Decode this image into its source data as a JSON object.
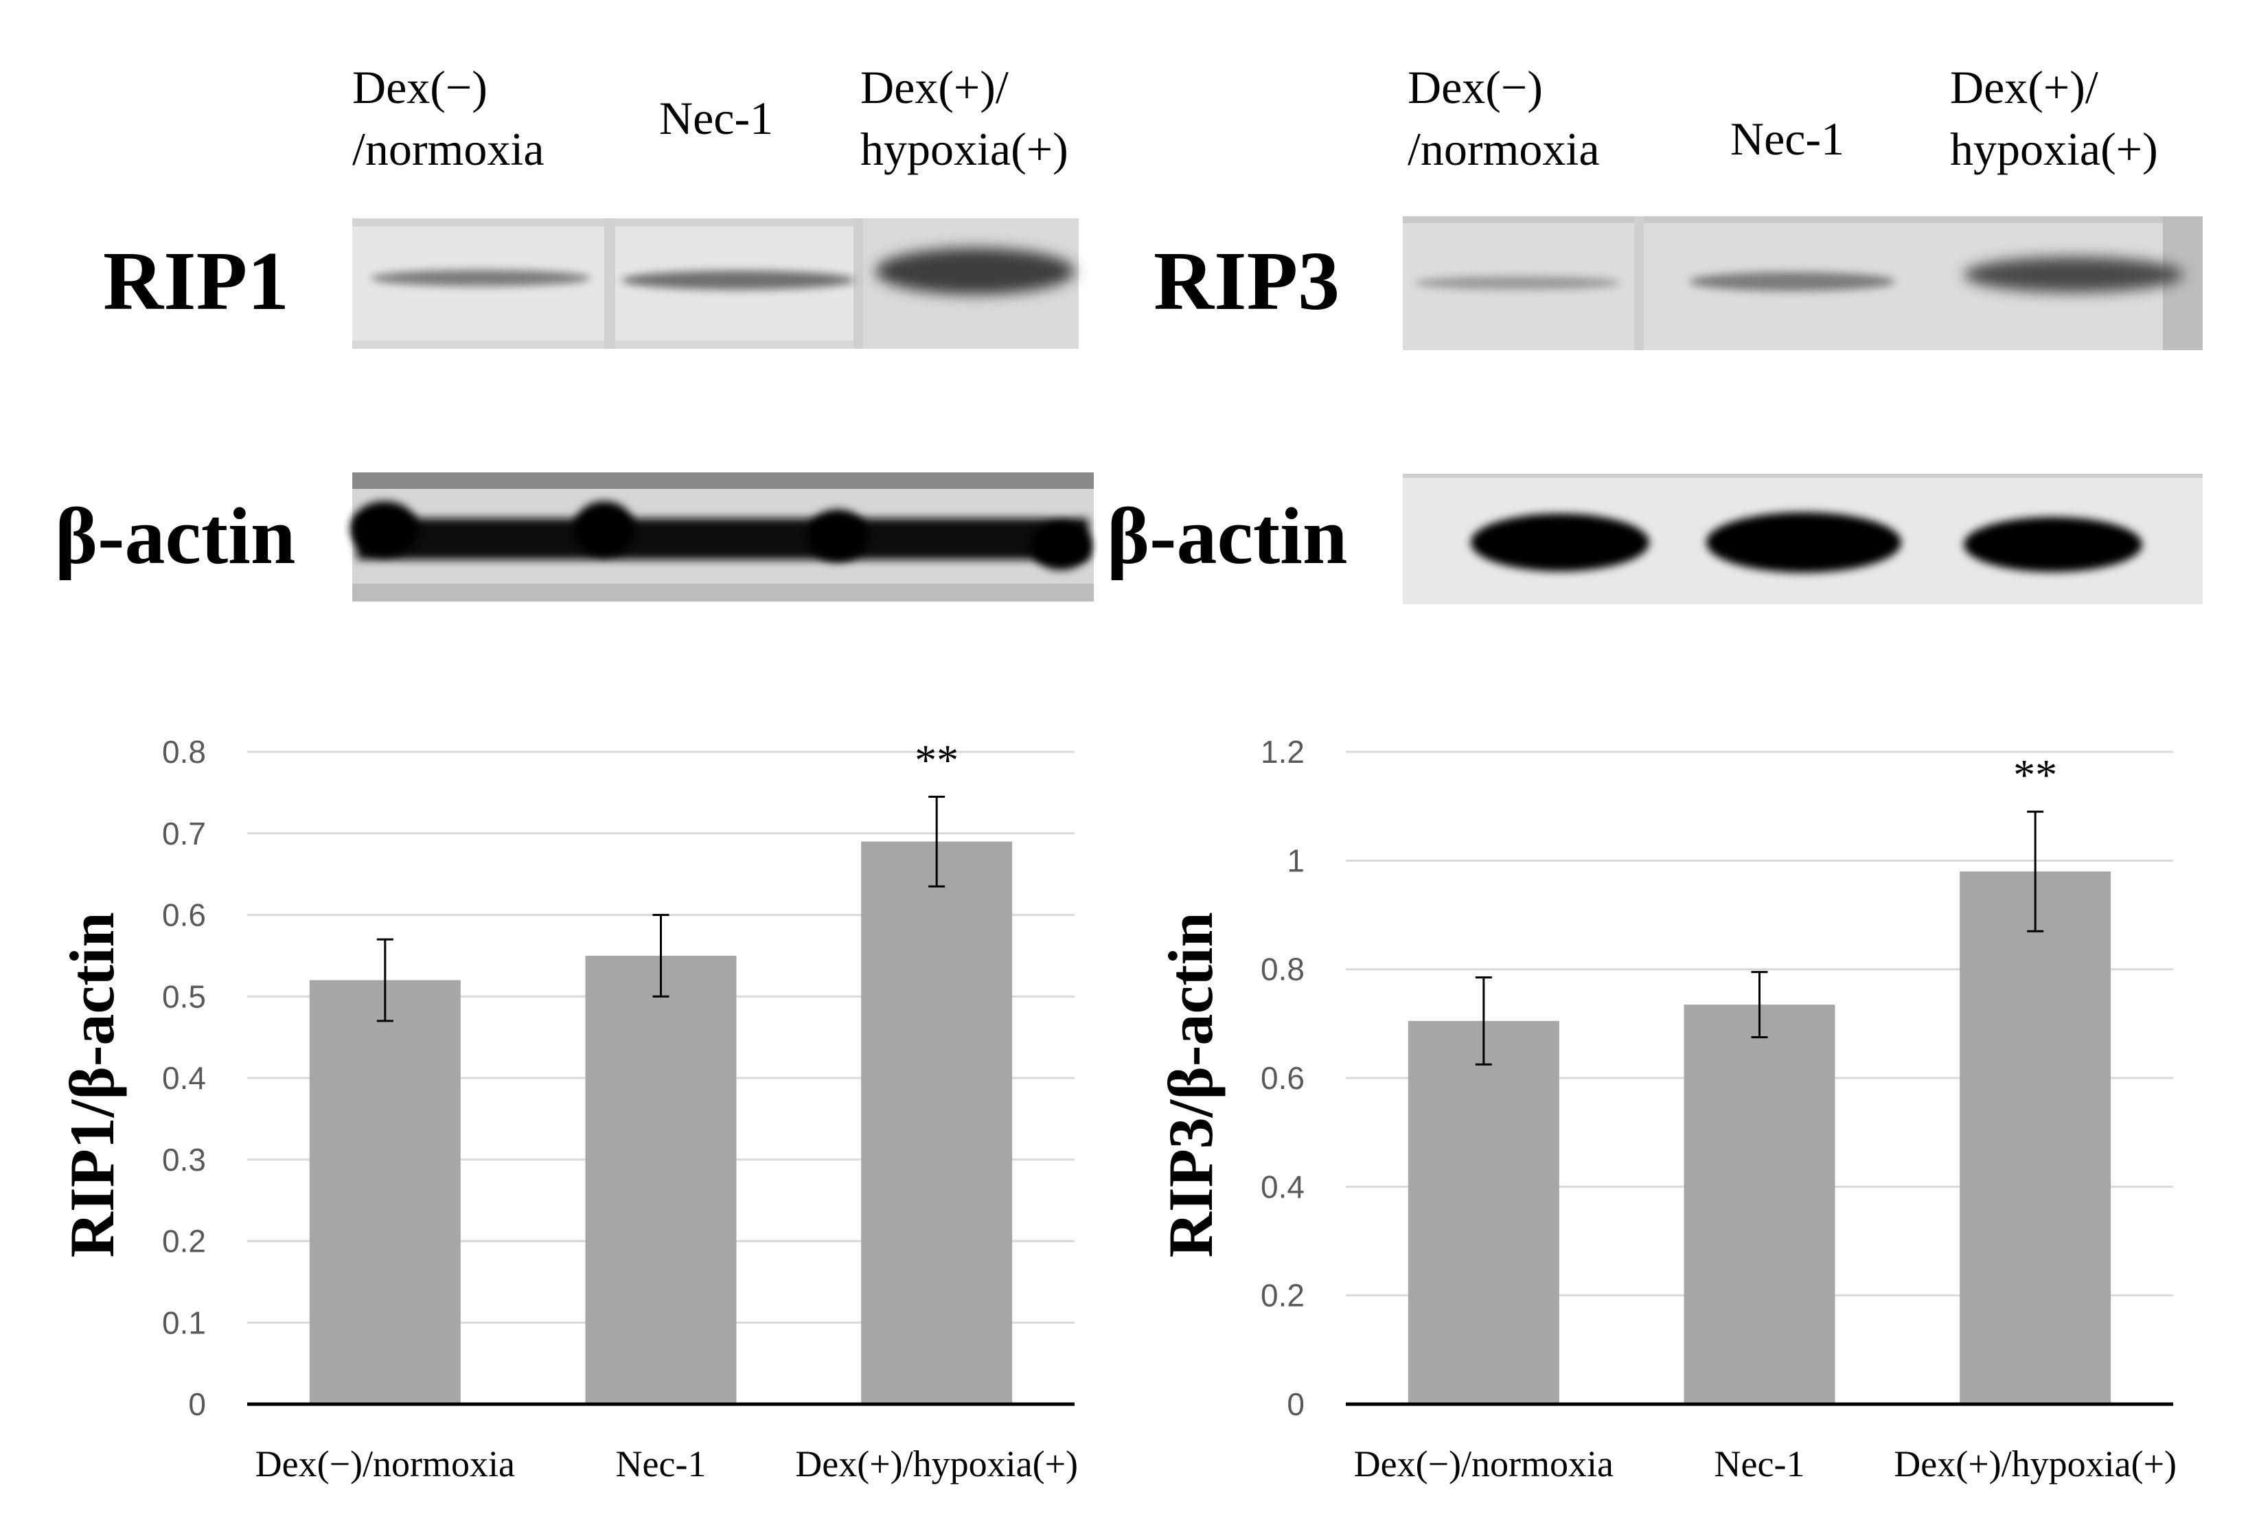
{
  "blots": [
    {
      "protein_label": "RIP1",
      "loading_label": "β-actin",
      "lanes": [
        [
          "Dex(−)",
          "/normoxia"
        ],
        [
          "Nec-1"
        ],
        [
          "Dex(+)/",
          "hypoxia(+)"
        ]
      ]
    },
    {
      "protein_label": "RIP3",
      "loading_label": "β-actin",
      "lanes": [
        [
          "Dex(−)",
          "/normoxia"
        ],
        [
          "Nec-1"
        ],
        [
          "Dex(+)/",
          "hypoxia(+)"
        ]
      ]
    }
  ],
  "chart_data": [
    {
      "type": "bar",
      "categories": [
        "Dex(−)/normoxia",
        "Nec-1",
        "Dex(+)/hypoxia(+)"
      ],
      "values": [
        0.52,
        0.55,
        0.69
      ],
      "errors": [
        0.05,
        0.05,
        0.055
      ],
      "annotations": [
        "",
        "",
        "**"
      ],
      "ylabel": "RIP1/β-actin",
      "xlabel": "",
      "ylim": [
        0,
        0.8
      ],
      "yticks": [
        "0",
        "0.1",
        "0.2",
        "0.3",
        "0.4",
        "0.5",
        "0.6",
        "0.7",
        "0.8"
      ],
      "grid": true,
      "bar_color": "#a6a6a6"
    },
    {
      "type": "bar",
      "categories": [
        "Dex(−)/normoxia",
        "Nec-1",
        "Dex(+)/hypoxia(+)"
      ],
      "values": [
        0.705,
        0.735,
        0.98
      ],
      "errors": [
        0.08,
        0.06,
        0.11
      ],
      "annotations": [
        "",
        "",
        "**"
      ],
      "ylabel": "RIP3/β-actin",
      "xlabel": "",
      "ylim": [
        0,
        1.2
      ],
      "yticks": [
        "0",
        "0.2",
        "0.4",
        "0.6",
        "0.8",
        "1",
        "1.2"
      ],
      "grid": true,
      "bar_color": "#a6a6a6"
    }
  ]
}
